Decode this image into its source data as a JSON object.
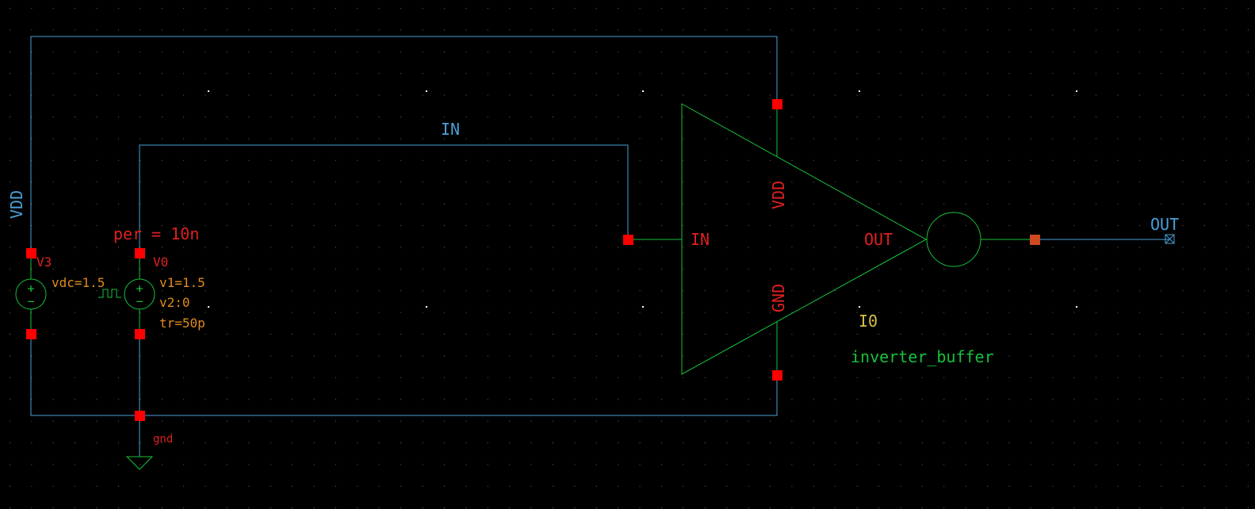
{
  "colors": {
    "background": "#000000",
    "wire": "#4a9fd8",
    "device": "#16c23a",
    "pin": "#ff0000",
    "pin_label": "#e02020",
    "param": "#e08a1e",
    "instance": "#d8c040",
    "grid_dot": "#6a6a6a",
    "highlight_dot": "#ffffff"
  },
  "net_labels": {
    "vdd": "VDD",
    "in": "IN",
    "out": "OUT"
  },
  "sources": {
    "v3": {
      "name": "V3",
      "param": "vdc=1.5",
      "plus": "+",
      "minus": "−"
    },
    "v0": {
      "name": "V0",
      "params": [
        "v1=1.5",
        "v2:0",
        "tr=50p"
      ],
      "per": "per = 10n",
      "plus": "+",
      "minus": "−"
    }
  },
  "ground_label": "gnd",
  "buffer": {
    "pins": {
      "in": "IN",
      "out": "OUT",
      "vdd": "VDD",
      "gnd": "GND"
    },
    "instance_name": "I0",
    "cell_name": "inverter_buffer"
  }
}
